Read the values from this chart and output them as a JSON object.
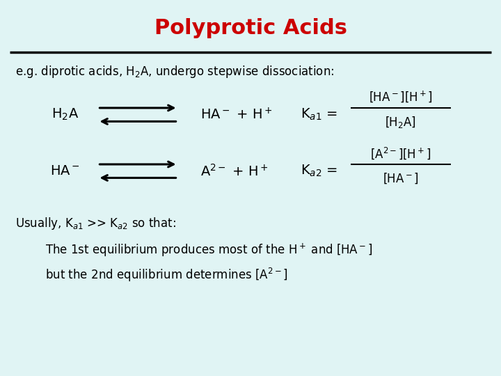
{
  "title": "Polyprotic Acids",
  "title_color": "#CC0000",
  "bg_color": "#E0F4F4",
  "line_color": "#000000",
  "text_color": "#000000",
  "figsize": [
    7.2,
    5.4
  ],
  "dpi": 100
}
